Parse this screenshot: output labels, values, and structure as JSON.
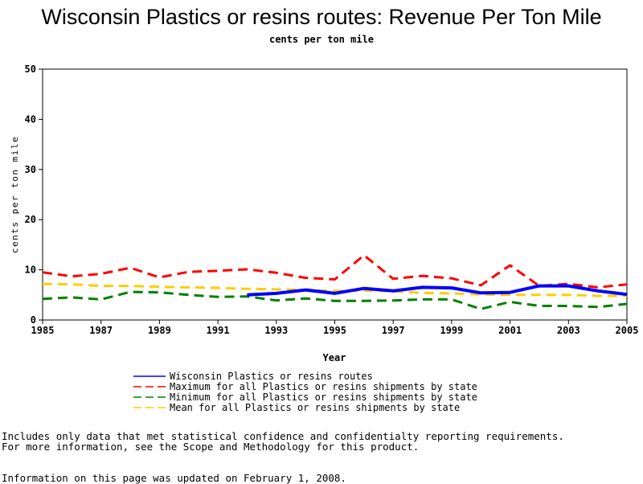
{
  "chart_data": {
    "type": "line",
    "title": "Wisconsin Plastics or resins routes: Revenue Per Ton Mile",
    "subtitle": "cents per ton mile",
    "xlabel": "Year",
    "ylabel": "cents per ton mile",
    "xlim": [
      1985,
      2005
    ],
    "ylim": [
      0,
      50
    ],
    "x_ticks": [
      "1985",
      "1987",
      "1989",
      "1991",
      "1993",
      "1995",
      "1997",
      "1999",
      "2001",
      "2003",
      "2005"
    ],
    "y_ticks": [
      "0",
      "10",
      "20",
      "30",
      "40",
      "50"
    ],
    "series": [
      {
        "name": "Wisconsin Plastics or resins routes",
        "color": "#0000ff",
        "style": "solid",
        "x": [
          1992,
          1993,
          1994,
          1995,
          1996,
          1997,
          1998,
          1999,
          2000,
          2001,
          2002,
          2003,
          2004,
          2005
        ],
        "y": [
          5.0,
          5.3,
          6.0,
          5.3,
          6.3,
          5.8,
          6.5,
          6.4,
          5.4,
          5.5,
          6.8,
          6.8,
          5.8,
          5.1
        ]
      },
      {
        "name": "Maximum for all Plastics or resins shipments by state",
        "color": "#ff0000",
        "style": "dashed",
        "x": [
          1985,
          1986,
          1987,
          1988,
          1989,
          1990,
          1991,
          1992,
          1993,
          1994,
          1995,
          1996,
          1997,
          1998,
          1999,
          2000,
          2001,
          2002,
          2003,
          2004,
          2005
        ],
        "y": [
          9.5,
          8.7,
          9.2,
          10.4,
          8.5,
          9.6,
          9.8,
          10.1,
          9.4,
          8.4,
          8.1,
          12.9,
          8.2,
          8.8,
          8.3,
          6.9,
          10.9,
          6.8,
          7.2,
          6.5,
          7.1
        ]
      },
      {
        "name": "Minimum for all Plastics or resins shipments by state",
        "color": "#008000",
        "style": "dashed",
        "x": [
          1985,
          1986,
          1987,
          1988,
          1989,
          1990,
          1991,
          1992,
          1993,
          1994,
          1995,
          1996,
          1997,
          1998,
          1999,
          2000,
          2001,
          2002,
          2003,
          2004,
          2005
        ],
        "y": [
          4.2,
          4.5,
          4.1,
          5.6,
          5.5,
          5.0,
          4.6,
          4.7,
          3.9,
          4.3,
          3.8,
          3.8,
          3.9,
          4.1,
          4.1,
          2.2,
          3.6,
          2.8,
          2.8,
          2.6,
          3.2
        ]
      },
      {
        "name": "Mean for all Plastics or resins shipments by state",
        "color": "#ffcc00",
        "style": "dashed",
        "x": [
          1985,
          1986,
          1987,
          1988,
          1989,
          1990,
          1991,
          1992,
          1993,
          1994,
          1995,
          1996,
          1997,
          1998,
          1999,
          2000,
          2001,
          2002,
          2003,
          2004,
          2005
        ],
        "y": [
          7.2,
          7.1,
          6.8,
          6.8,
          6.6,
          6.5,
          6.4,
          6.2,
          6.1,
          6.0,
          5.8,
          5.9,
          5.7,
          5.4,
          5.3,
          5.1,
          5.0,
          5.0,
          5.0,
          4.8,
          4.8
        ]
      }
    ],
    "legend_position": "bottom"
  },
  "notes": {
    "line1": "Includes only data that met statistical confidence and confidentialty reporting requirements.",
    "line2": "For more information, see the Scope and Methodology for this product.",
    "updated": "Information on this page was updated on February 1, 2008."
  }
}
